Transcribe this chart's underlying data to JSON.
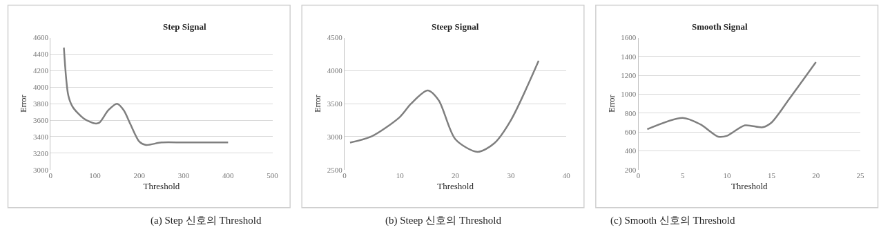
{
  "chart_data": [
    {
      "type": "line",
      "title": "Step Signal",
      "xlabel": "Threshold",
      "ylabel": "Error",
      "annotations": [
        "(a) Step 신호의 Threshold"
      ],
      "xlim": [
        0,
        500
      ],
      "xticks": [
        0,
        100,
        200,
        300,
        400,
        500
      ],
      "ylim": [
        3000,
        4600
      ],
      "yticks": [
        3000,
        3200,
        3400,
        3600,
        3800,
        4000,
        4200,
        4400,
        4600
      ],
      "grid": "y",
      "series": [
        {
          "color": "#7f7f7f",
          "x": [
            30,
            40,
            50,
            75,
            100,
            110,
            130,
            150,
            165,
            180,
            200,
            215,
            250,
            300,
            400
          ],
          "values": [
            4480,
            3900,
            3760,
            3620,
            3560,
            3570,
            3720,
            3800,
            3720,
            3550,
            3340,
            3300,
            3330,
            3330,
            3330
          ]
        }
      ]
    },
    {
      "type": "line",
      "title": "Steep Signal",
      "xlabel": "Threshold",
      "ylabel": "Error",
      "annotations": [
        "(b) Steep 신호의 Threshold"
      ],
      "xlim": [
        0,
        40
      ],
      "xticks": [
        0,
        10,
        20,
        30,
        40
      ],
      "ylim": [
        2500,
        4500
      ],
      "yticks": [
        2500,
        3000,
        3500,
        4000,
        4500
      ],
      "grid": "y",
      "series": [
        {
          "color": "#7f7f7f",
          "x": [
            1,
            5,
            10,
            12,
            15,
            17,
            20,
            24,
            27,
            30,
            35
          ],
          "values": [
            2910,
            3010,
            3300,
            3500,
            3700,
            3550,
            2960,
            2770,
            2900,
            3250,
            4150
          ]
        }
      ]
    },
    {
      "type": "line",
      "title": "Smooth Signal",
      "xlabel": "Threshold",
      "ylabel": "Error",
      "annotations": [
        "(c) Smooth 신호의 Threshold"
      ],
      "xlim": [
        0,
        25
      ],
      "xticks": [
        0,
        5,
        10,
        15,
        20,
        25
      ],
      "ylim": [
        200,
        1600
      ],
      "yticks": [
        200,
        400,
        600,
        800,
        1000,
        1200,
        1400,
        1600
      ],
      "grid": "y",
      "series": [
        {
          "color": "#7f7f7f",
          "x": [
            1,
            5,
            7,
            9,
            10,
            12,
            14,
            15,
            17,
            20
          ],
          "values": [
            630,
            750,
            680,
            550,
            560,
            670,
            650,
            700,
            950,
            1340
          ]
        }
      ]
    }
  ]
}
